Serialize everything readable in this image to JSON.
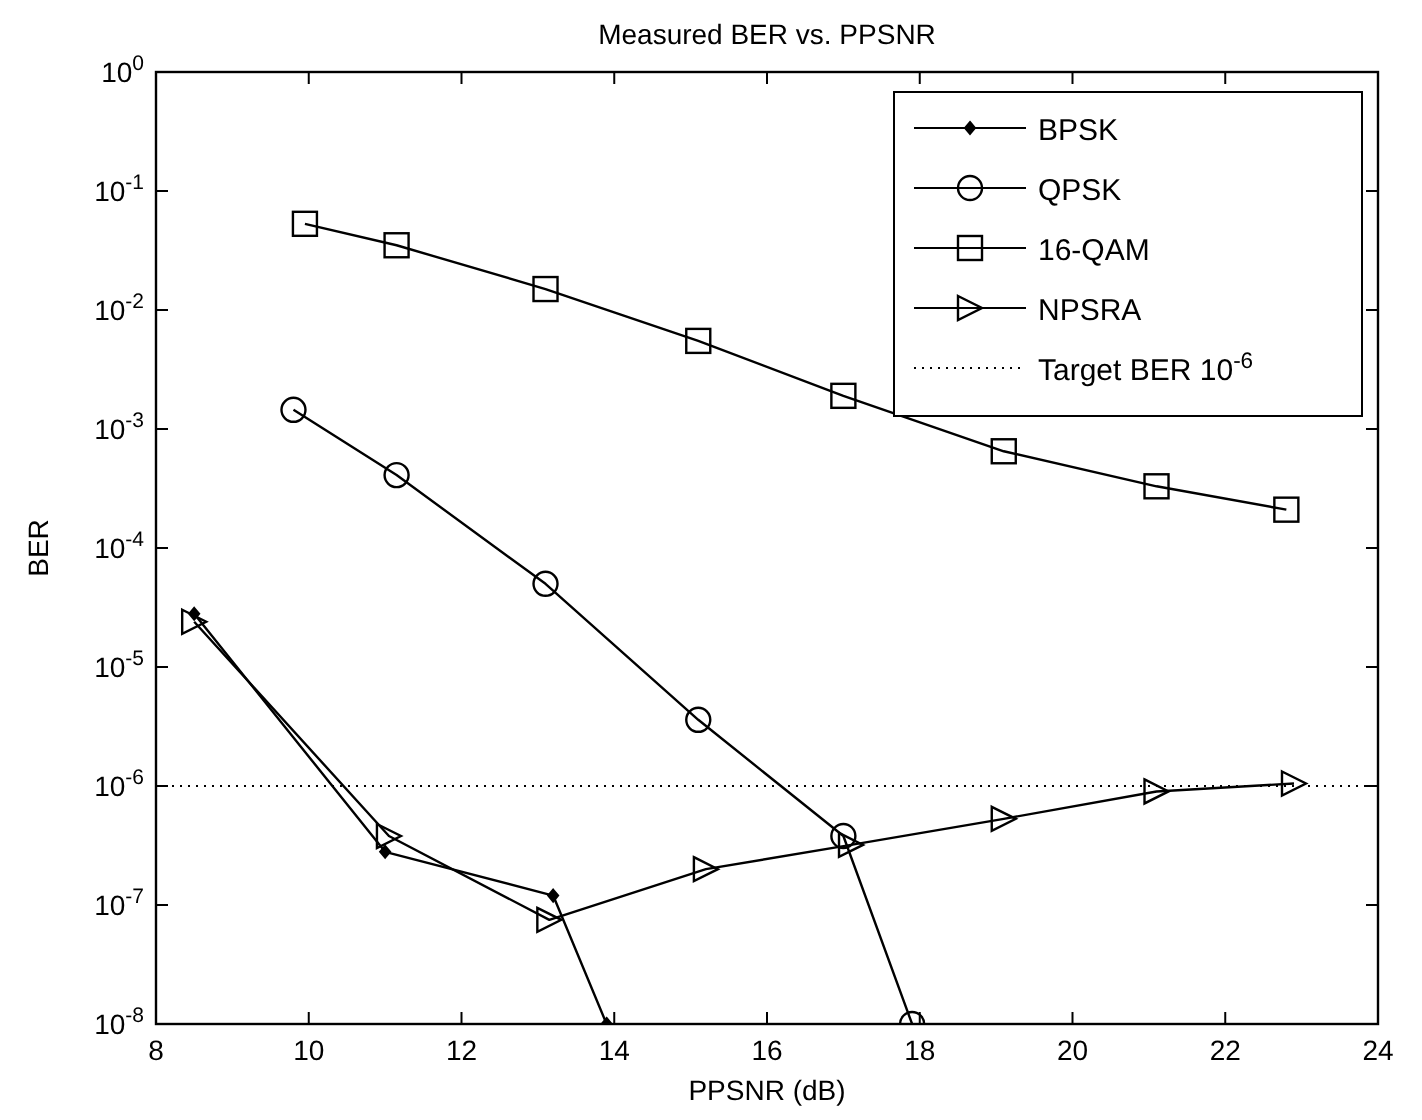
{
  "chart_data": {
    "type": "line",
    "title": "Measured BER vs. PPSNR",
    "xlabel": "PPSNR (dB)",
    "ylabel": "BER",
    "log": "y",
    "grid": false,
    "legend": "top right",
    "xlim": [
      8,
      24
    ],
    "xticks": [
      8,
      10,
      12,
      14,
      16,
      18,
      20,
      22,
      24
    ],
    "ylim": [
      1e-08,
      1
    ],
    "yticks": [
      {
        "value": 1e-08,
        "label": "10$^{-8}$"
      },
      {
        "value": 1e-07,
        "label": "10$^{-7}$"
      },
      {
        "value": 1e-06,
        "label": "10$^{-6}$"
      },
      {
        "value": 1e-05,
        "label": "10$^{-5}$"
      },
      {
        "value": 0.0001,
        "label": "10$^{-4}$"
      },
      {
        "value": 0.001,
        "label": "10$^{-3}$"
      },
      {
        "value": 0.01,
        "label": "10$^{-2}$"
      },
      {
        "value": 0.1,
        "label": "10$^{-1}$"
      },
      {
        "value": 1,
        "label": "10$^{0}$"
      }
    ],
    "series": [
      {
        "name": "BPSK",
        "color": "#000000",
        "marker": "diamond",
        "x": [
          8.5,
          11,
          13.2,
          13.9
        ],
        "values": [
          2.8e-05,
          2.8e-07,
          1.2e-07,
          1e-08
        ]
      },
      {
        "name": "QPSK",
        "color": "#000000",
        "marker": "circle",
        "x": [
          9.8,
          11.15,
          13.1,
          15.1,
          17,
          17.9
        ],
        "values": [
          0.00145,
          0.00041,
          5e-05,
          3.6e-06,
          3.8e-07,
          1e-08
        ]
      },
      {
        "name": "16-QAM",
        "color": "#000000",
        "marker": "square",
        "x": [
          9.95,
          11.15,
          13.1,
          15.1,
          17,
          19.1,
          21.1,
          22.8
        ],
        "values": [
          0.053,
          0.035,
          0.015,
          0.0055,
          0.0019,
          0.00065,
          0.00033,
          0.00021
        ]
      },
      {
        "name": "NPSRA",
        "color": "#000000",
        "marker": "triangle",
        "x": [
          8.5,
          11.05,
          13.15,
          15.2,
          17.1,
          19.1,
          21.1,
          22.9
        ],
        "values": [
          2.4e-05,
          3.8e-07,
          7.5e-08,
          2e-07,
          3.2e-07,
          5.3e-07,
          9e-07,
          1.05e-06
        ]
      }
    ],
    "ref_lines": [
      {
        "axis": "y",
        "value": 1e-06,
        "label": "Target BER 10$^{-6}$",
        "color": "#000000",
        "line_style": "dotted"
      }
    ]
  }
}
